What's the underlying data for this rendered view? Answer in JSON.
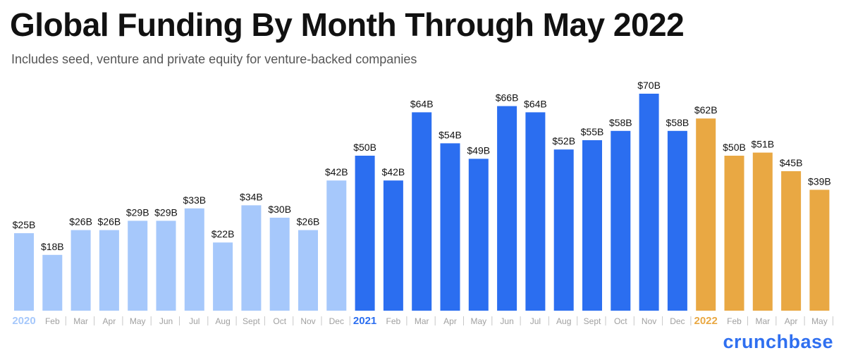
{
  "chart_data": {
    "type": "bar",
    "title": "Global Funding By Month Through May 2022",
    "subtitle": "Includes seed, venture and private equity for venture-backed companies",
    "unit_prefix": "$",
    "unit_suffix": "B",
    "ylim": [
      0,
      70
    ],
    "grid": false,
    "colors": {
      "2020": "#a6c8fb",
      "2021": "#2b6ef0",
      "2022": "#e9a843"
    },
    "categories": [
      "2020",
      "Feb",
      "Mar",
      "Apr",
      "May",
      "Jun",
      "Jul",
      "Aug",
      "Sept",
      "Oct",
      "Nov",
      "Dec",
      "2021",
      "Feb",
      "Mar",
      "Apr",
      "May",
      "Jun",
      "Jul",
      "Aug",
      "Sept",
      "Oct",
      "Nov",
      "Dec",
      "2022",
      "Feb",
      "Mar",
      "Apr",
      "May"
    ],
    "years": [
      "2020",
      "2020",
      "2020",
      "2020",
      "2020",
      "2020",
      "2020",
      "2020",
      "2020",
      "2020",
      "2020",
      "2020",
      "2021",
      "2021",
      "2021",
      "2021",
      "2021",
      "2021",
      "2021",
      "2021",
      "2021",
      "2021",
      "2021",
      "2021",
      "2022",
      "2022",
      "2022",
      "2022",
      "2022"
    ],
    "values": [
      25,
      18,
      26,
      26,
      29,
      29,
      33,
      22,
      34,
      30,
      26,
      42,
      50,
      42,
      64,
      54,
      49,
      66,
      64,
      52,
      55,
      58,
      70,
      58,
      62,
      50,
      51,
      45,
      39
    ],
    "data_labels": [
      "$25B",
      "$18B",
      "$26B",
      "$26B",
      "$29B",
      "$29B",
      "$33B",
      "$22B",
      "$34B",
      "$30B",
      "$26B",
      "$42B",
      "$50B",
      "$42B",
      "$64B",
      "$54B",
      "$49B",
      "$66B",
      "$64B",
      "$52B",
      "$55B",
      "$58B",
      "$70B",
      "$58B",
      "$62B",
      "$50B",
      "$51B",
      "$45B",
      "$39B"
    ]
  },
  "brand": {
    "name": "crunchbase"
  }
}
